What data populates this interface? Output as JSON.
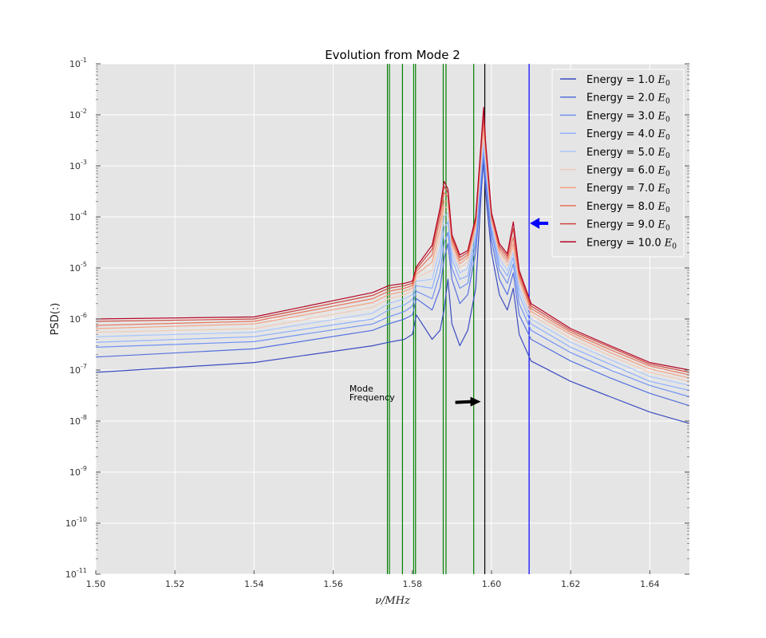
{
  "chart_data": {
    "type": "line",
    "title": "Evolution from Mode 2",
    "xlabel": "ν/MHz",
    "ylabel": "PSD(:)",
    "xlim": [
      1.5,
      1.65
    ],
    "ylim": [
      1e-11,
      0.1
    ],
    "y_scale": "log",
    "grid": true,
    "legend_position": "top-right",
    "x_ticks": [
      "1.50",
      "1.52",
      "1.54",
      "1.56",
      "1.58",
      "1.60",
      "1.62",
      "1.64"
    ],
    "y_ticks": [
      {
        "base": "10",
        "exp": "-1"
      },
      {
        "base": "10",
        "exp": "-2"
      },
      {
        "base": "10",
        "exp": "-3"
      },
      {
        "base": "10",
        "exp": "-4"
      },
      {
        "base": "10",
        "exp": "-5"
      },
      {
        "base": "10",
        "exp": "-6"
      },
      {
        "base": "10",
        "exp": "-7"
      },
      {
        "base": "10",
        "exp": "-8"
      },
      {
        "base": "10",
        "exp": "-9"
      },
      {
        "base": "10",
        "exp": "-10"
      },
      {
        "base": "10",
        "exp": "-11"
      }
    ],
    "x": [
      1.5,
      1.54,
      1.57,
      1.574,
      1.578,
      1.58,
      1.581,
      1.585,
      1.587,
      1.588,
      1.589,
      1.59,
      1.592,
      1.594,
      1.596,
      1.5975,
      1.598,
      1.5985,
      1.6,
      1.602,
      1.604,
      1.6055,
      1.607,
      1.61,
      1.62,
      1.63,
      1.64,
      1.65
    ],
    "series": [
      {
        "name": "Energy = 1.0 E0",
        "color": "#3b4cc0",
        "values": [
          9e-08,
          1.4e-07,
          3e-07,
          3.5e-07,
          4e-07,
          5e-07,
          1.2e-06,
          4e-07,
          6e-07,
          1.5e-06,
          6e-06,
          8e-07,
          3e-07,
          6e-07,
          4e-06,
          0.0004,
          0.0012,
          0.0003,
          2e-05,
          3e-06,
          1.5e-06,
          4e-06,
          5e-07,
          1.5e-07,
          6e-08,
          3e-08,
          1.5e-08,
          9e-09
        ]
      },
      {
        "name": "Energy = 2.0 E0",
        "color": "#5470de",
        "values": [
          1.8e-07,
          2.6e-07,
          6e-07,
          8e-07,
          1e-06,
          1.2e-06,
          2.5e-06,
          1.5e-06,
          4e-06,
          1.5e-05,
          3e-05,
          6e-06,
          2e-06,
          3e-06,
          2e-05,
          0.0006,
          0.0015,
          0.0005,
          3.5e-05,
          6e-06,
          3e-06,
          8e-06,
          1.2e-06,
          4e-07,
          1.5e-07,
          7e-08,
          3.5e-08,
          2e-08
        ]
      },
      {
        "name": "Energy = 3.0 E0",
        "color": "#7093f3",
        "values": [
          2.8e-07,
          3.6e-07,
          8e-07,
          1.1e-06,
          1.4e-06,
          1.8e-06,
          3.5e-06,
          2.5e-06,
          8e-06,
          3e-05,
          5e-05,
          1e-05,
          4e-06,
          5e-06,
          3e-05,
          0.0008,
          0.002,
          0.0007,
          5e-05,
          9e-06,
          5e-06,
          1.2e-05,
          2e-06,
          6e-07,
          2.2e-07,
          1e-07,
          5e-08,
          3e-08
        ]
      },
      {
        "name": "Energy = 4.0 E0",
        "color": "#8db0fe",
        "values": [
          3.5e-07,
          4.5e-07,
          1e-06,
          1.5e-06,
          1.9e-06,
          2.4e-06,
          4.5e-06,
          4e-06,
          1.5e-05,
          6e-05,
          8e-05,
          1.5e-05,
          6e-06,
          7e-06,
          4e-05,
          0.001,
          0.0025,
          0.0009,
          6e-05,
          1.2e-05,
          7e-06,
          1.6e-05,
          3e-06,
          8e-07,
          2.8e-07,
          1.3e-07,
          6e-08,
          4e-08
        ]
      },
      {
        "name": "Energy = 5.0 E0",
        "color": "#aac7fd",
        "values": [
          4.5e-07,
          5.5e-07,
          1.3e-06,
          2e-06,
          2.5e-06,
          3e-06,
          5.5e-06,
          6e-06,
          2.5e-05,
          0.0001,
          0.00012,
          2e-05,
          8e-06,
          1e-05,
          5e-05,
          0.0013,
          0.003,
          0.0011,
          7e-05,
          1.5e-05,
          9e-06,
          2e-05,
          4e-06,
          1e-06,
          3.5e-07,
          1.6e-07,
          7.5e-08,
          5e-08
        ]
      },
      {
        "name": "Energy = 6.0 E0",
        "color": "#f2cbb7",
        "values": [
          5.5e-07,
          6.5e-07,
          1.7e-06,
          2.5e-06,
          3e-06,
          3.5e-06,
          6.5e-06,
          9e-06,
          4e-05,
          0.00015,
          0.00016,
          2.5e-05,
          1e-05,
          1.3e-05,
          6e-05,
          0.0017,
          0.004,
          0.0014,
          8e-05,
          1.8e-05,
          1.1e-05,
          2.5e-05,
          5e-06,
          1.2e-06,
          4.2e-07,
          1.9e-07,
          9e-08,
          6e-08
        ]
      },
      {
        "name": "Energy = 7.0 E0",
        "color": "#f5a081",
        "values": [
          6.5e-07,
          8e-07,
          2.1e-06,
          3e-06,
          3.5e-06,
          4e-06,
          7.5e-06,
          1.3e-05,
          6e-05,
          0.0002,
          0.0002,
          3e-05,
          1.2e-05,
          1.6e-05,
          7e-05,
          0.0022,
          0.006,
          0.0018,
          9e-05,
          2.1e-05,
          1.3e-05,
          3e-05,
          6e-06,
          1.4e-06,
          5e-07,
          2.2e-07,
          1.05e-07,
          7e-08
        ]
      },
      {
        "name": "Energy = 8.0 E0",
        "color": "#e7745b",
        "values": [
          7.5e-07,
          9e-07,
          2.5e-06,
          3.5e-06,
          4e-06,
          4.5e-06,
          8.5e-06,
          1.8e-05,
          9e-05,
          0.0003,
          0.00025,
          3.5e-05,
          1.4e-05,
          1.8e-05,
          8e-05,
          0.0028,
          0.008,
          0.0022,
          0.0001,
          2.4e-05,
          1.5e-05,
          4e-05,
          7e-06,
          1.6e-06,
          5.5e-07,
          2.5e-07,
          1.2e-07,
          8e-08
        ]
      },
      {
        "name": "Energy = 9.0 E0",
        "color": "#cf453c",
        "values": [
          9e-07,
          1e-06,
          2.9e-06,
          4e-06,
          4.5e-06,
          5e-06,
          9.5e-06,
          2.3e-05,
          0.00012,
          0.0004,
          0.0003,
          4e-05,
          1.6e-05,
          2e-05,
          9e-05,
          0.0034,
          0.011,
          0.0026,
          0.00011,
          2.7e-05,
          1.7e-05,
          6e-05,
          8e-06,
          1.8e-06,
          6e-07,
          2.8e-07,
          1.3e-07,
          9e-08
        ]
      },
      {
        "name": "Energy = 10.0 E0",
        "color": "#b40426",
        "values": [
          1e-06,
          1.1e-06,
          3.3e-06,
          4.5e-06,
          5e-06,
          5.5e-06,
          1.05e-05,
          2.8e-05,
          0.00015,
          0.0005,
          0.00035,
          4.5e-05,
          1.8e-05,
          2.2e-05,
          0.0001,
          0.004,
          0.014,
          0.003,
          0.00012,
          3e-05,
          1.9e-05,
          8e-05,
          9e-06,
          2e-06,
          6.5e-07,
          3e-07,
          1.4e-07,
          1e-07
        ]
      }
    ],
    "vertical_lines": [
      {
        "x": 1.5737,
        "color": "#008000"
      },
      {
        "x": 1.5742,
        "color": "#008000"
      },
      {
        "x": 1.5775,
        "color": "#008000"
      },
      {
        "x": 1.5803,
        "color": "#008000"
      },
      {
        "x": 1.5808,
        "color": "#008000"
      },
      {
        "x": 1.5878,
        "color": "#008000"
      },
      {
        "x": 1.5885,
        "color": "#008000"
      },
      {
        "x": 1.5955,
        "color": "#008000"
      },
      {
        "x": 1.5983,
        "color": "#000000"
      },
      {
        "x": 1.6095,
        "color": "#0000ff"
      }
    ],
    "legend": [
      {
        "label": "Energy = 1.0 ",
        "sym": "E",
        "sub": "0",
        "color": "#3b4cc0"
      },
      {
        "label": "Energy = 2.0 ",
        "sym": "E",
        "sub": "0",
        "color": "#5470de"
      },
      {
        "label": "Energy = 3.0 ",
        "sym": "E",
        "sub": "0",
        "color": "#7093f3"
      },
      {
        "label": "Energy = 4.0 ",
        "sym": "E",
        "sub": "0",
        "color": "#8db0fe"
      },
      {
        "label": "Energy = 5.0 ",
        "sym": "E",
        "sub": "0",
        "color": "#aac7fd"
      },
      {
        "label": "Energy = 6.0 ",
        "sym": "E",
        "sub": "0",
        "color": "#f2cbb7"
      },
      {
        "label": "Energy = 7.0 ",
        "sym": "E",
        "sub": "0",
        "color": "#f5a081"
      },
      {
        "label": "Energy = 8.0 ",
        "sym": "E",
        "sub": "0",
        "color": "#e7745b"
      },
      {
        "label": "Energy = 9.0 ",
        "sym": "E",
        "sub": "0",
        "color": "#cf453c"
      },
      {
        "label": "Energy = 10.0 ",
        "sym": "E",
        "sub": "0",
        "color": "#b40426"
      }
    ],
    "annotations": [
      {
        "text_lines": [
          "Mode",
          "Frequency"
        ],
        "arrow_color": "#000000",
        "target_x": 1.5973,
        "target_y": 2.4e-08,
        "text_x": 1.578,
        "text_y": 3.5e-08
      },
      {
        "text_lines": [],
        "arrow_color": "#0000ff",
        "target_x": 1.6097,
        "target_y": 7.5e-05,
        "text_x": 1.6145,
        "text_y": 7.5e-05
      }
    ]
  },
  "colors": {
    "plot_background": "#e5e5e5",
    "grid": "#ffffff",
    "figure_background": "#ffffff"
  }
}
